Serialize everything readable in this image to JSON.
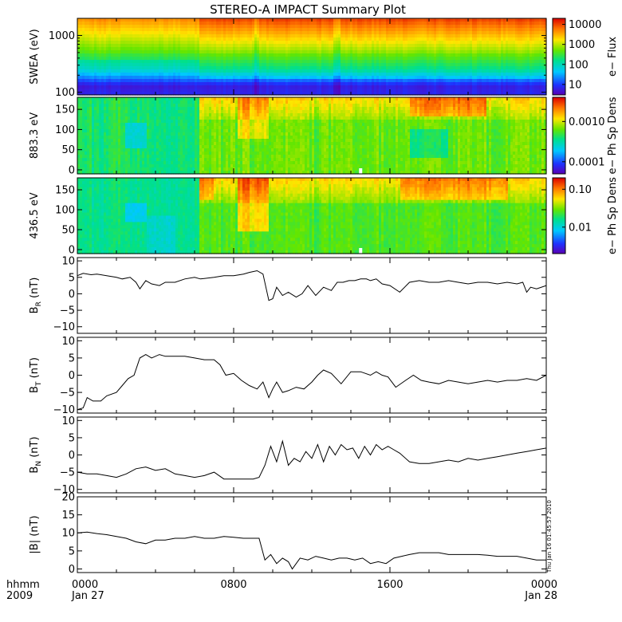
{
  "title": "STEREO-A IMPACT Summary Plot",
  "timestamp": "Thu Jan 16 01:45:57 2010",
  "x_axis": {
    "row1_label": "hhmm",
    "row2_label": "2009",
    "ticks": [
      {
        "hour": 0,
        "label": "0000",
        "date": "Jan 27"
      },
      {
        "hour": 8,
        "label": "0800",
        "date": ""
      },
      {
        "hour": 16,
        "label": "1600",
        "date": ""
      },
      {
        "hour": 24,
        "label": "0000",
        "date": "Jan 28"
      }
    ]
  },
  "chart_data": [
    {
      "type": "heatmap",
      "id": "swea",
      "ylabel": "SWEA (eV)",
      "yscale": "log",
      "ylim": [
        90,
        2000
      ],
      "yticks": [
        {
          "v": 100,
          "label": "100"
        },
        {
          "v": 1000,
          "label": "1000"
        }
      ],
      "colorbar": {
        "label": "e− Flux",
        "scale": "log",
        "range": [
          3,
          20000
        ],
        "ticks": [
          {
            "v": 10,
            "label": "10"
          },
          {
            "v": 100,
            "label": "100"
          },
          {
            "v": 1000,
            "label": "1000"
          },
          {
            "v": 10000,
            "label": "10000"
          }
        ]
      }
    },
    {
      "type": "heatmap",
      "id": "pad883",
      "ylabel": "883.3 eV",
      "yscale": "linear",
      "ylim": [
        -10,
        180
      ],
      "yticks": [
        {
          "v": 0,
          "label": "0"
        },
        {
          "v": 50,
          "label": "50"
        },
        {
          "v": 100,
          "label": "100"
        },
        {
          "v": 150,
          "label": "150"
        }
      ],
      "colorbar": {
        "label": "e− Ph Sp Dens",
        "scale": "log",
        "range": [
          5e-05,
          0.004
        ],
        "ticks": [
          {
            "v": 0.0001,
            "label": "0.0001"
          },
          {
            "v": 0.001,
            "label": "0.0010"
          }
        ]
      }
    },
    {
      "type": "heatmap",
      "id": "pad436",
      "ylabel": "436.5 eV",
      "yscale": "linear",
      "ylim": [
        -10,
        180
      ],
      "yticks": [
        {
          "v": 0,
          "label": "0"
        },
        {
          "v": 50,
          "label": "50"
        },
        {
          "v": 100,
          "label": "100"
        },
        {
          "v": 150,
          "label": "150"
        }
      ],
      "colorbar": {
        "label": "e− Ph Sp Dens",
        "scale": "log",
        "range": [
          0.002,
          0.2
        ],
        "ticks": [
          {
            "v": 0.01,
            "label": "0.01"
          },
          {
            "v": 0.1,
            "label": "0.10"
          }
        ]
      }
    },
    {
      "type": "line",
      "id": "br",
      "ylabel": {
        "main": "B",
        "sub": "R",
        "unit": " (nT)"
      },
      "ylim": [
        -12,
        11
      ],
      "yticks": [
        {
          "v": -10,
          "label": "−10"
        },
        {
          "v": -5,
          "label": "−5"
        },
        {
          "v": 0,
          "label": "0"
        },
        {
          "v": 5,
          "label": "5"
        },
        {
          "v": 10,
          "label": "10"
        }
      ],
      "x": [
        0,
        0.3,
        0.7,
        1,
        1.5,
        2,
        2.3,
        2.7,
        3,
        3.2,
        3.5,
        3.8,
        4.2,
        4.5,
        5,
        5.5,
        6,
        6.3,
        7,
        7.5,
        8,
        8.5,
        8.8,
        9.2,
        9.5,
        9.8,
        10,
        10.2,
        10.5,
        10.8,
        11.2,
        11.5,
        11.8,
        12.2,
        12.6,
        13,
        13.3,
        13.6,
        13.9,
        14.2,
        14.5,
        14.8,
        15,
        15.3,
        15.6,
        16,
        16.5,
        17,
        17.5,
        18,
        18.5,
        19,
        19.5,
        20,
        20.5,
        21,
        21.5,
        22,
        22.5,
        22.8,
        23,
        23.2,
        23.5,
        24
      ],
      "y": [
        5.5,
        6.2,
        5.8,
        6,
        5.5,
        5,
        4.5,
        5,
        3.5,
        1.5,
        4,
        3,
        2.5,
        3.5,
        3.5,
        4.5,
        5,
        4.5,
        5,
        5.5,
        5.5,
        6,
        6.5,
        7,
        6,
        -2,
        -1.5,
        2,
        -0.5,
        0.5,
        -1,
        0,
        2.5,
        -0.5,
        2,
        1,
        3.5,
        3.5,
        4,
        4,
        4.5,
        4.5,
        4,
        4.5,
        3,
        2.5,
        0.5,
        3.5,
        4,
        3.5,
        3.5,
        4,
        3.5,
        3,
        3.5,
        3.5,
        3,
        3.5,
        3,
        3.5,
        0.5,
        2,
        1.5,
        2.5
      ]
    },
    {
      "type": "line",
      "id": "bt",
      "ylabel": {
        "main": "B",
        "sub": "T",
        "unit": " (nT)"
      },
      "ylim": [
        -11,
        11
      ],
      "yticks": [
        {
          "v": -10,
          "label": "−10"
        },
        {
          "v": -5,
          "label": "−5"
        },
        {
          "v": 0,
          "label": "0"
        },
        {
          "v": 5,
          "label": "5"
        },
        {
          "v": 10,
          "label": "10"
        }
      ],
      "x": [
        0,
        0.3,
        0.5,
        0.8,
        1.2,
        1.5,
        2,
        2.3,
        2.6,
        2.9,
        3.2,
        3.5,
        3.8,
        4.2,
        4.5,
        5,
        5.5,
        6,
        6.5,
        7,
        7.3,
        7.6,
        8,
        8.4,
        8.8,
        9.2,
        9.5,
        9.8,
        10,
        10.2,
        10.5,
        10.8,
        11.2,
        11.6,
        12,
        12.3,
        12.6,
        13,
        13.5,
        14,
        14.5,
        15,
        15.3,
        15.6,
        15.9,
        16.3,
        16.8,
        17.2,
        17.6,
        18,
        18.5,
        19,
        19.5,
        20,
        20.5,
        21,
        21.5,
        22,
        22.5,
        23,
        23.5,
        24
      ],
      "y": [
        -10,
        -9.5,
        -6.5,
        -7.5,
        -7.5,
        -6,
        -5,
        -3,
        -1,
        0,
        5,
        6,
        5,
        6,
        5.5,
        5.5,
        5.5,
        5,
        4.5,
        4.5,
        3,
        0,
        0.5,
        -1.5,
        -3,
        -4,
        -2,
        -6.5,
        -4,
        -2,
        -5,
        -4.5,
        -3.5,
        -4,
        -2,
        0,
        1.5,
        0.5,
        -2.5,
        1,
        1,
        0,
        1,
        0,
        -0.5,
        -3.5,
        -1.5,
        0,
        -1.5,
        -2,
        -2.5,
        -1.5,
        -2,
        -2.5,
        -2,
        -1.5,
        -2,
        -1.5,
        -1.5,
        -1,
        -1.5,
        0
      ]
    },
    {
      "type": "line",
      "id": "bn",
      "ylabel": {
        "main": "B",
        "sub": "N",
        "unit": " (nT)"
      },
      "ylim": [
        -11,
        11
      ],
      "yticks": [
        {
          "v": -10,
          "label": "−10"
        },
        {
          "v": -5,
          "label": "−5"
        },
        {
          "v": 0,
          "label": "0"
        },
        {
          "v": 5,
          "label": "5"
        },
        {
          "v": 10,
          "label": "10"
        }
      ],
      "x": [
        0,
        0.5,
        1,
        1.5,
        2,
        2.5,
        3,
        3.5,
        4,
        4.5,
        5,
        5.5,
        6,
        6.5,
        7,
        7.5,
        8,
        8.5,
        9,
        9.3,
        9.6,
        9.9,
        10.2,
        10.5,
        10.8,
        11.1,
        11.4,
        11.7,
        12,
        12.3,
        12.6,
        12.9,
        13.2,
        13.5,
        13.8,
        14.1,
        14.4,
        14.7,
        15,
        15.3,
        15.6,
        15.9,
        16.2,
        16.5,
        17,
        17.5,
        18,
        18.5,
        19,
        19.5,
        20,
        20.5,
        21,
        21.5,
        22,
        22.5,
        23,
        23.5,
        24
      ],
      "y": [
        -5,
        -5.5,
        -5.5,
        -6,
        -6.5,
        -5.5,
        -4,
        -3.5,
        -4.5,
        -4,
        -5.5,
        -6,
        -6.5,
        -6,
        -5,
        -7,
        -7,
        -7,
        -7,
        -6.5,
        -3,
        2.5,
        -2,
        4,
        -3,
        -1,
        -2,
        1,
        -1,
        3,
        -2,
        2.5,
        0,
        3,
        1.5,
        2,
        -1,
        2.5,
        0,
        3,
        1.5,
        2.5,
        1.5,
        0.5,
        -2,
        -2.5,
        -2.5,
        -2,
        -1.5,
        -2,
        -1,
        -1.5,
        -1,
        -0.5,
        0,
        0.5,
        1,
        1.5,
        2
      ]
    },
    {
      "type": "line",
      "id": "bmag",
      "ylabel": {
        "main": "|B|",
        "sub": "",
        "unit": " (nT)"
      },
      "ylim": [
        -1,
        20
      ],
      "yticks": [
        {
          "v": 0,
          "label": "0"
        },
        {
          "v": 5,
          "label": "5"
        },
        {
          "v": 10,
          "label": "10"
        },
        {
          "v": 15,
          "label": "15"
        },
        {
          "v": 20,
          "label": "20"
        }
      ],
      "x": [
        0,
        0.5,
        1,
        1.5,
        2,
        2.5,
        3,
        3.5,
        4,
        4.5,
        5,
        5.5,
        6,
        6.5,
        7,
        7.5,
        8,
        8.5,
        9,
        9.3,
        9.6,
        9.9,
        10.2,
        10.5,
        10.8,
        11,
        11.4,
        11.8,
        12.2,
        12.6,
        13,
        13.4,
        13.8,
        14.2,
        14.6,
        15,
        15.4,
        15.8,
        16.2,
        16.6,
        17,
        17.5,
        18,
        18.5,
        19,
        19.5,
        20,
        20.5,
        21,
        21.5,
        22,
        22.5,
        23,
        23.5,
        24
      ],
      "y": [
        10,
        10.2,
        9.8,
        9.5,
        9,
        8.5,
        7.5,
        7,
        8,
        8,
        8.5,
        8.5,
        9,
        8.5,
        8.5,
        9,
        8.8,
        8.5,
        8.5,
        8.5,
        2.5,
        4,
        1.5,
        3,
        2,
        0,
        3,
        2.5,
        3.5,
        3,
        2.5,
        3,
        3,
        2.5,
        3,
        1.5,
        2,
        1.5,
        3,
        3.5,
        4,
        4.5,
        4.5,
        4.5,
        4,
        4,
        4,
        4,
        3.8,
        3.5,
        3.5,
        3.5,
        3,
        2.5,
        2.5
      ]
    }
  ]
}
